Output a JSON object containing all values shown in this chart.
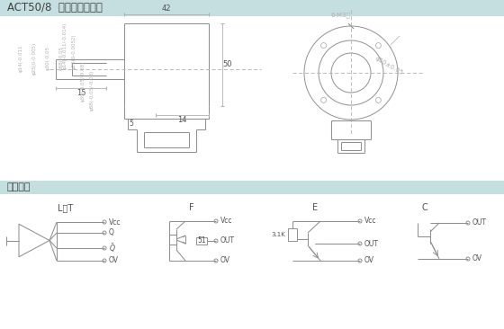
{
  "title_top": "ACT50/8  电缆航插侧出型",
  "section2_title": "输出电路",
  "bg_color": "#eef6f7",
  "header_bg": "#c5dfe0",
  "line_color": "#909090",
  "dim_color": "#b0b0b0",
  "text_color": "#505050",
  "circuit_labels": [
    "L、T",
    "F",
    "E",
    "C"
  ],
  "res_label": "51",
  "rk_label": "3.1K"
}
